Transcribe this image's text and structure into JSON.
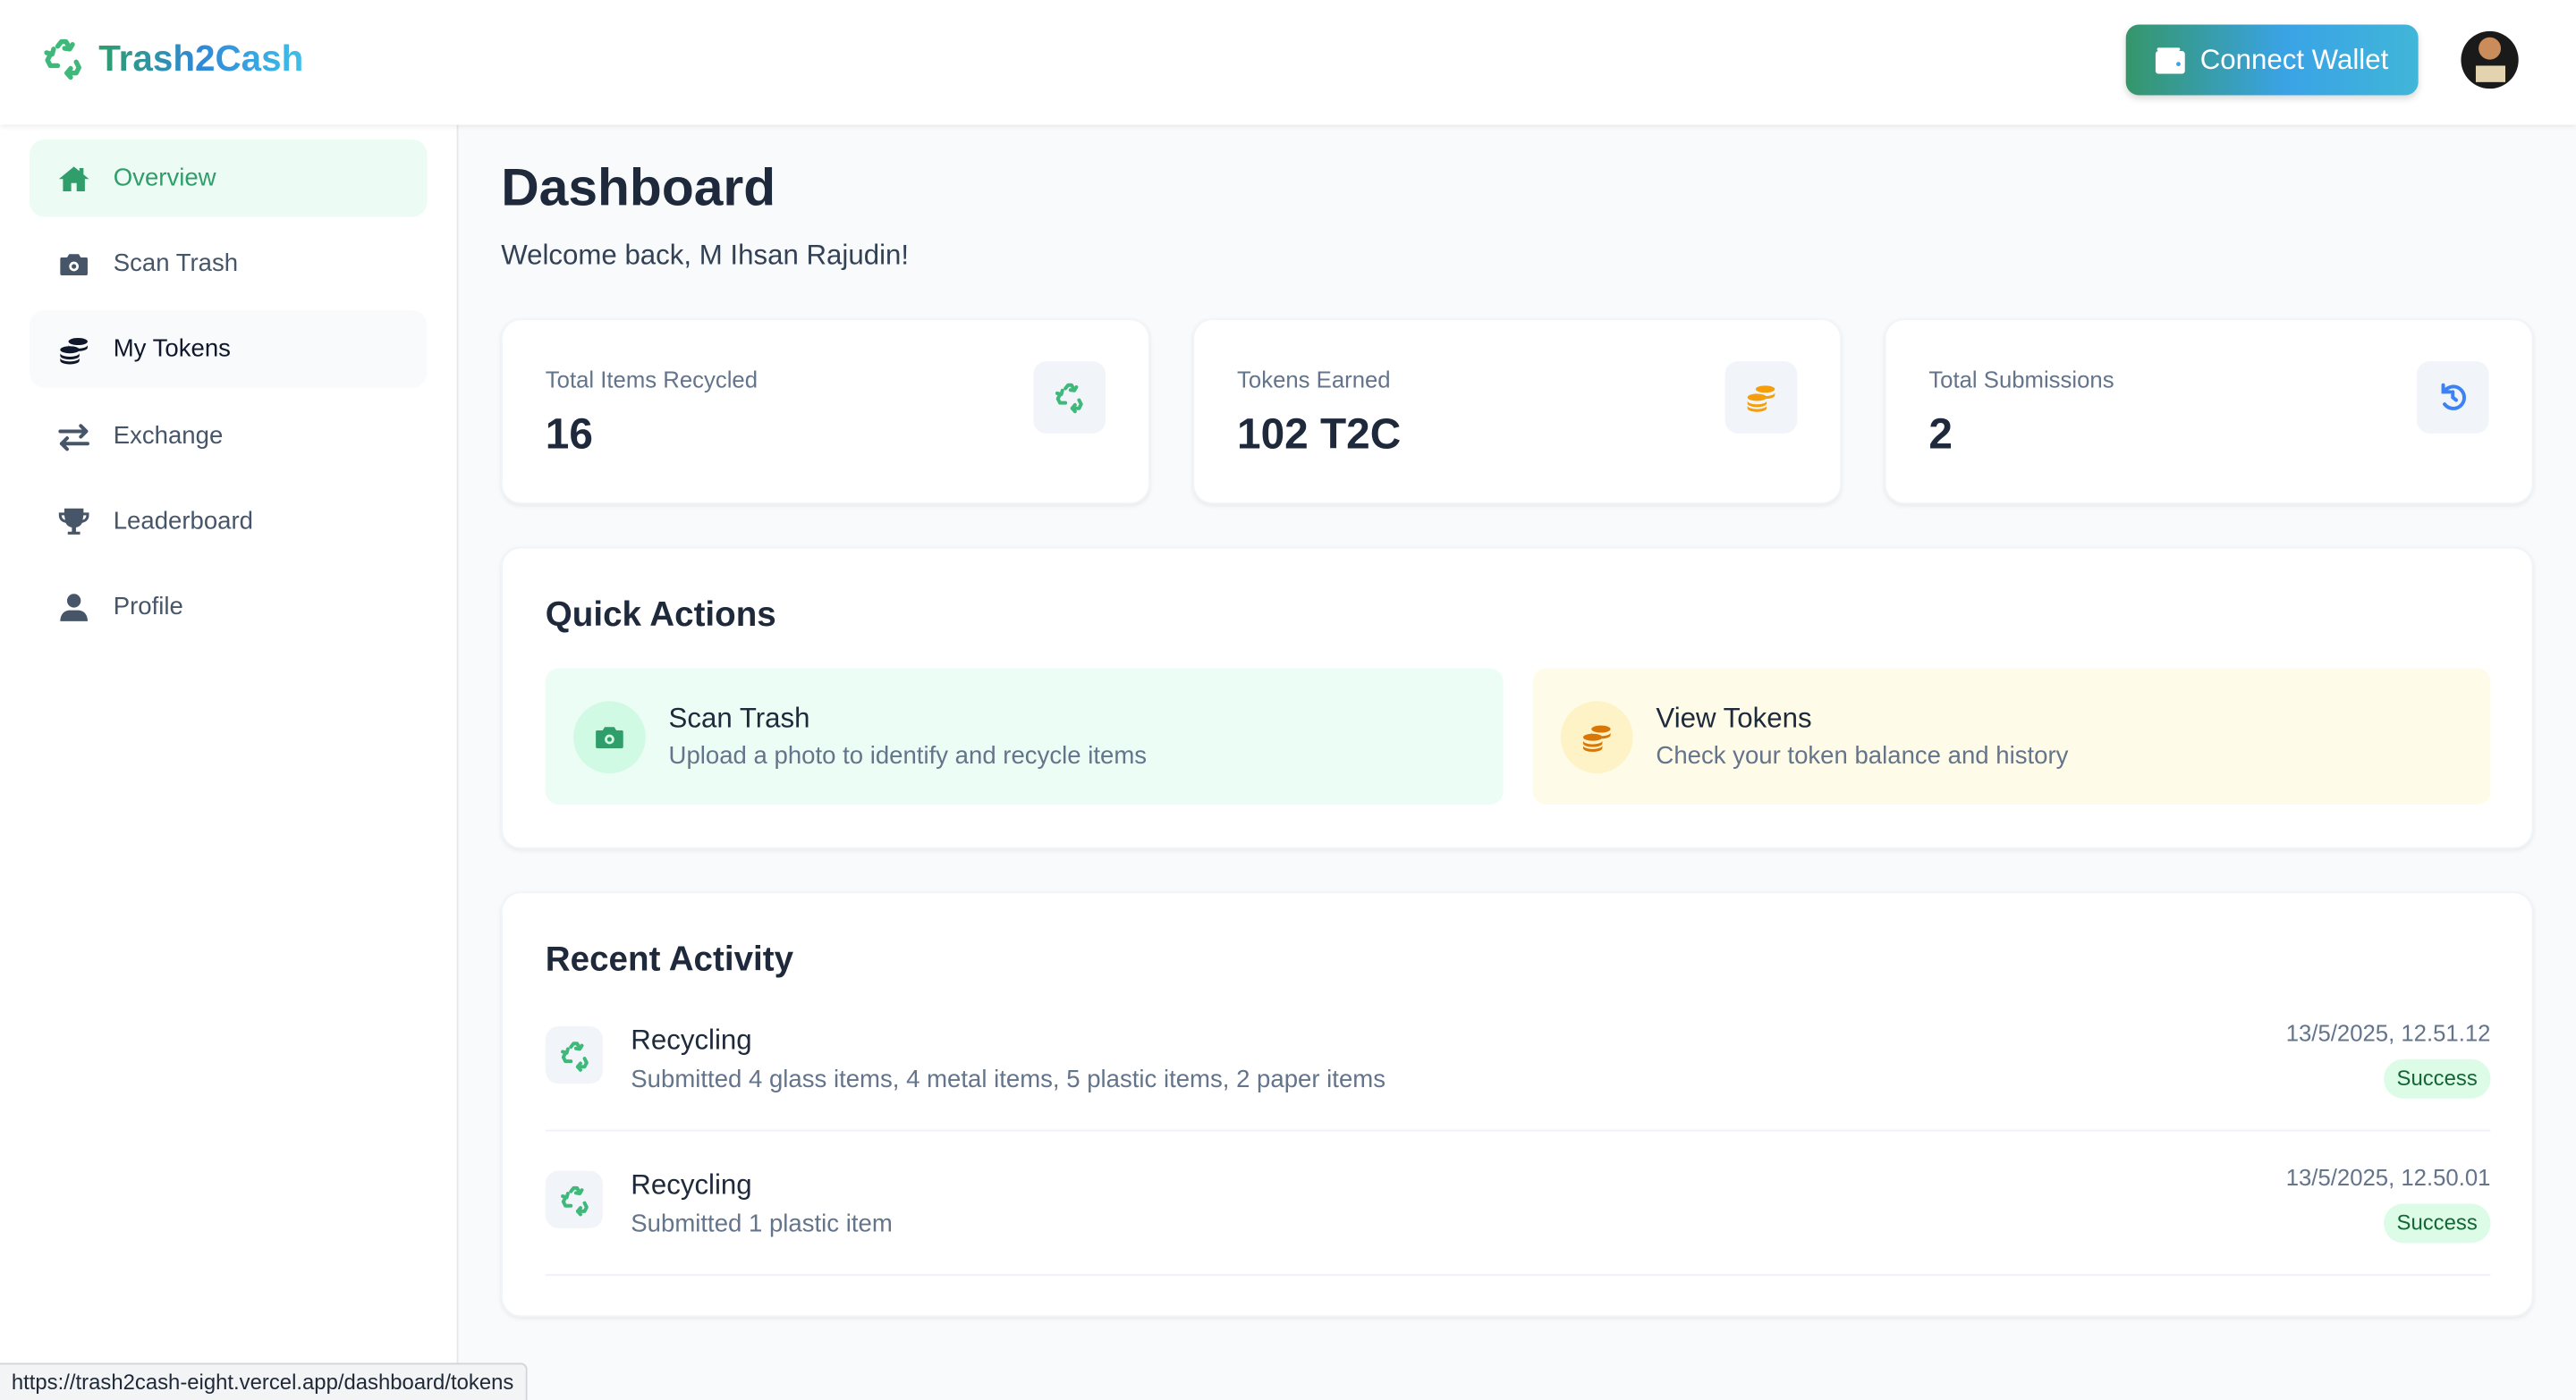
{
  "app": {
    "name": "Trash2Cash",
    "connect_wallet": "Connect Wallet"
  },
  "colors": {
    "brand_green": "#2f9e6b",
    "brand_blue": "#3aa3e6",
    "token_orange": "#f59e0b",
    "history_blue": "#3b82f6"
  },
  "sidebar": {
    "items": [
      {
        "label": "Overview",
        "icon": "home-icon",
        "state": "active"
      },
      {
        "label": "Scan Trash",
        "icon": "camera-icon"
      },
      {
        "label": "My Tokens",
        "icon": "coins-icon",
        "state": "hover"
      },
      {
        "label": "Exchange",
        "icon": "exchange-icon"
      },
      {
        "label": "Leaderboard",
        "icon": "trophy-icon"
      },
      {
        "label": "Profile",
        "icon": "user-icon"
      }
    ]
  },
  "main": {
    "title": "Dashboard",
    "welcome": "Welcome back, M Ihsan Rajudin!",
    "stats": [
      {
        "label": "Total Items Recycled",
        "value": "16",
        "icon": "recycle-icon"
      },
      {
        "label": "Tokens Earned",
        "value": "102 T2C",
        "icon": "coins-icon"
      },
      {
        "label": "Total Submissions",
        "value": "2",
        "icon": "history-icon"
      }
    ],
    "quick_actions": {
      "title": "Quick Actions",
      "items": [
        {
          "title": "Scan Trash",
          "desc": "Upload a photo to identify and recycle items",
          "icon": "camera-icon"
        },
        {
          "title": "View Tokens",
          "desc": "Check your token balance and history",
          "icon": "coins-icon"
        }
      ]
    },
    "recent": {
      "title": "Recent Activity",
      "items": [
        {
          "title": "Recycling",
          "desc": "Submitted 4 glass items, 4 metal items, 5 plastic items, 2 paper items",
          "time": "13/5/2025, 12.51.12",
          "status": "Success"
        },
        {
          "title": "Recycling",
          "desc": "Submitted 1 plastic item",
          "time": "13/5/2025, 12.50.01",
          "status": "Success"
        }
      ]
    }
  },
  "statusbar": {
    "url": "https://trash2cash-eight.vercel.app/dashboard/tokens"
  }
}
